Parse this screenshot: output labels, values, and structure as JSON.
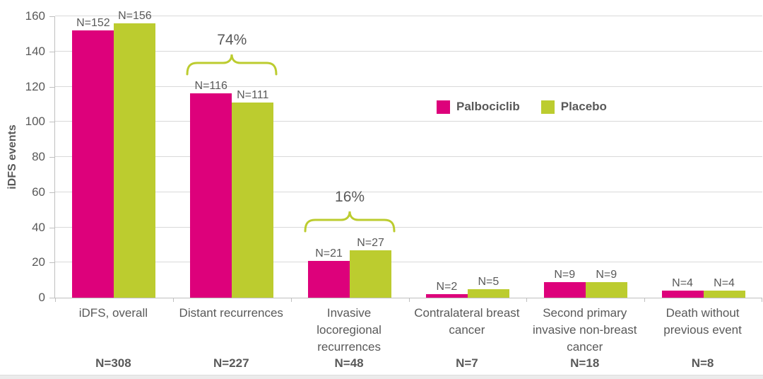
{
  "chart_data": {
    "type": "bar",
    "title": "",
    "ylabel": "iDFS events",
    "ylim": [
      0,
      160
    ],
    "yticks": [
      0,
      20,
      40,
      60,
      80,
      100,
      120,
      140,
      160
    ],
    "grid": "horizontal",
    "legend_position": "middle-right",
    "categories": [
      "iDFS, overall",
      "Distant recurrences",
      "Invasive\nlocoregional\nrecurrences",
      "Contralateral breast\ncancer",
      "Second primary\ninvasive non-breast\ncancer",
      "Death without\nprevious event"
    ],
    "category_totals": [
      "N=308",
      "N=227",
      "N=48",
      "N=7",
      "N=18",
      "N=8"
    ],
    "series": [
      {
        "name": "Palbociclib",
        "color": "#DD017B",
        "values": [
          152,
          116,
          21,
          2,
          9,
          4
        ],
        "bar_labels": [
          "N=152",
          "N=116",
          "N=21",
          "N=2",
          "N=9",
          "N=4"
        ]
      },
      {
        "name": "Placebo",
        "color": "#BCCC2F",
        "values": [
          156,
          111,
          27,
          5,
          9,
          4
        ],
        "bar_labels": [
          "N=156",
          "N=111",
          "N=27",
          "N=5",
          "N=9",
          "N=4"
        ]
      }
    ],
    "annotations": [
      {
        "text": "74%",
        "category_index": 1
      },
      {
        "text": "16%",
        "category_index": 2
      }
    ],
    "colors": {
      "label_gray": "#595959",
      "gridline": "#D9D9D9",
      "axis_line": "#BFBFBF",
      "brace": "#BCCC2F",
      "bottom_strip": "#EBEBEB"
    }
  }
}
